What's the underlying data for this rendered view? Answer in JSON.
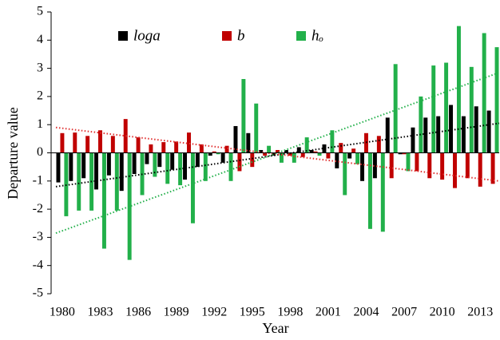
{
  "chart_data": {
    "type": "bar",
    "x_label": "Year",
    "y_label": "Departure value",
    "categories": [
      "1980",
      null,
      null,
      "1983",
      null,
      null,
      "1986",
      null,
      null,
      "1989",
      null,
      null,
      "1992",
      null,
      null,
      "1995",
      null,
      null,
      "1998",
      null,
      null,
      "2001",
      null,
      null,
      "2004",
      null,
      null,
      "2007",
      null,
      null,
      "2010",
      null,
      null,
      "2013",
      null
    ],
    "series": [
      {
        "name": "loga",
        "color": "#000000",
        "trend_color": "#000000",
        "values": [
          -1.05,
          -1.0,
          -0.9,
          -1.3,
          -0.8,
          -1.35,
          -0.75,
          -0.4,
          -0.5,
          -0.6,
          -0.95,
          -0.5,
          -0.1,
          -0.35,
          0.95,
          0.7,
          0.1,
          -0.1,
          0.1,
          0.2,
          0.1,
          0.3,
          -0.55,
          -0.2,
          -1.0,
          -0.9,
          1.25,
          -0.05,
          0.9,
          1.25,
          1.3,
          1.7,
          1.3,
          1.65,
          1.5
        ],
        "trend": [
          -1.2,
          1.05
        ]
      },
      {
        "name": "b",
        "color": "#c00000",
        "trend_color": "#e03030",
        "values": [
          0.7,
          0.72,
          0.6,
          0.8,
          0.6,
          1.2,
          0.55,
          0.3,
          0.38,
          0.4,
          0.72,
          0.3,
          0.05,
          0.25,
          -0.65,
          -0.5,
          -0.1,
          0.1,
          -0.1,
          -0.15,
          0.05,
          -0.2,
          0.35,
          0.15,
          0.7,
          0.6,
          -0.9,
          -0.05,
          -0.65,
          -0.9,
          -0.95,
          -1.25,
          -0.9,
          -1.2,
          -1.1
        ],
        "trend": [
          0.9,
          -1.0
        ]
      },
      {
        "name": "hₒ",
        "color": "#22b04a",
        "trend_color": "#22b04a",
        "values": [
          -2.25,
          -2.05,
          -2.05,
          -3.4,
          -2.05,
          -3.8,
          -1.5,
          -0.85,
          -1.1,
          -1.15,
          -2.5,
          -1.0,
          -0.05,
          -1.0,
          2.62,
          1.75,
          0.25,
          -0.35,
          -0.35,
          0.55,
          -0.1,
          0.8,
          -1.5,
          -0.4,
          -2.7,
          -2.8,
          3.15,
          -0.65,
          2.0,
          3.1,
          3.2,
          4.5,
          3.05,
          4.25,
          3.75
        ],
        "trend": [
          -2.85,
          2.85
        ]
      }
    ],
    "ylim": [
      -5,
      5
    ],
    "yticks": [
      -5,
      -4,
      -3,
      -2,
      -1,
      0,
      1,
      2,
      3,
      4,
      5
    ]
  }
}
